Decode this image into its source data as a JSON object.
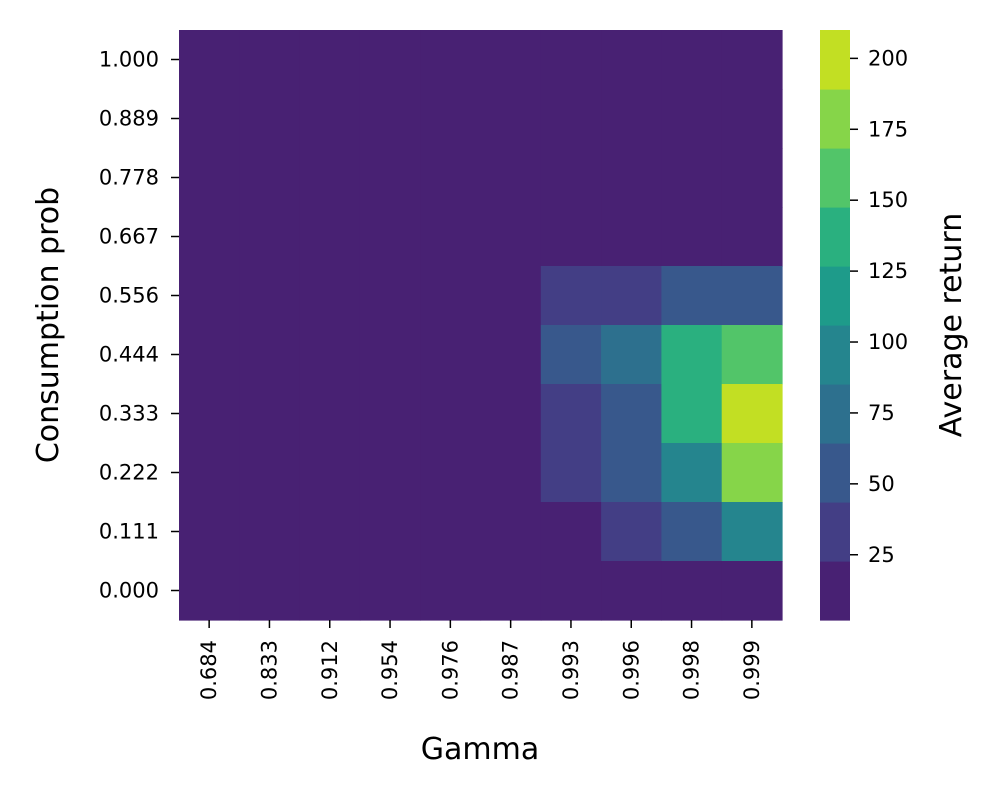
{
  "chart_data": {
    "type": "heatmap",
    "xlabel": "Gamma",
    "ylabel": "Consumption prob",
    "colorbar_label": "Average return",
    "x_categories": [
      "0.684",
      "0.833",
      "0.912",
      "0.954",
      "0.976",
      "0.987",
      "0.993",
      "0.996",
      "0.998",
      "0.999"
    ],
    "y_categories": [
      "1.000",
      "0.889",
      "0.778",
      "0.667",
      "0.556",
      "0.444",
      "0.333",
      "0.222",
      "0.111",
      "0.000"
    ],
    "values": [
      [
        2,
        2,
        2,
        2,
        2,
        2,
        2,
        2,
        2,
        2
      ],
      [
        2,
        2,
        2,
        2,
        2,
        2,
        2,
        2,
        2,
        2
      ],
      [
        2,
        2,
        2,
        2,
        2,
        2,
        2,
        2,
        2,
        2
      ],
      [
        2,
        2,
        2,
        2,
        2,
        2,
        2,
        2,
        2,
        2
      ],
      [
        2,
        2,
        2,
        2,
        2,
        2,
        32,
        32,
        55,
        55
      ],
      [
        2,
        2,
        2,
        2,
        2,
        2,
        55,
        80,
        130,
        160
      ],
      [
        2,
        2,
        2,
        2,
        2,
        2,
        32,
        55,
        130,
        205
      ],
      [
        2,
        2,
        2,
        2,
        2,
        2,
        32,
        55,
        105,
        180
      ],
      [
        2,
        2,
        2,
        2,
        2,
        2,
        2,
        32,
        55,
        105
      ],
      [
        2,
        2,
        2,
        2,
        2,
        2,
        2,
        2,
        2,
        2
      ]
    ],
    "colorbar": {
      "vmin": 2,
      "vmax": 210,
      "ticks": [
        25,
        50,
        75,
        100,
        125,
        150,
        175,
        200
      ],
      "colors": [
        "#482173",
        "#433e85",
        "#38588c",
        "#2d708e",
        "#25858e",
        "#1e9b8a",
        "#2ab07f",
        "#52c569",
        "#86d549",
        "#c2df23"
      ]
    }
  }
}
